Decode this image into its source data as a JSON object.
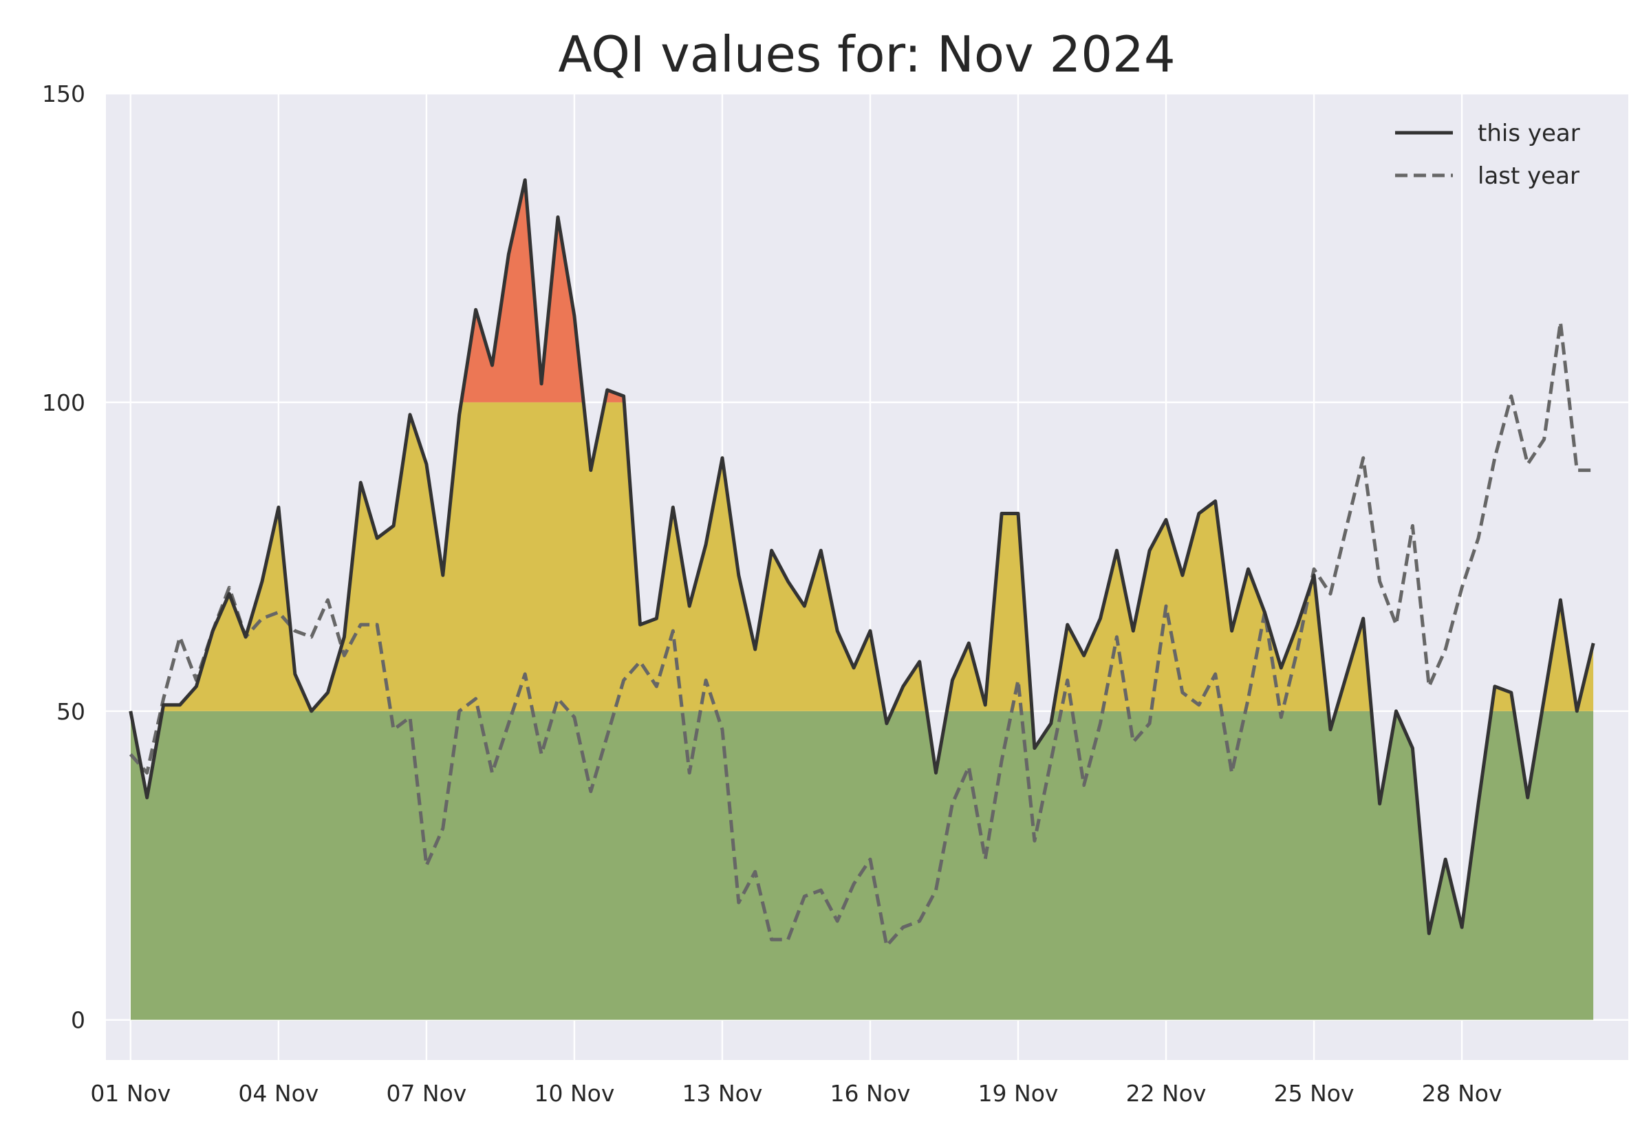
{
  "chart_data": {
    "type": "area",
    "title": "AQI values for: Nov 2024",
    "xlabel": "",
    "ylabel": "",
    "ylim": [
      -6.5,
      150
    ],
    "yticks": [
      0,
      50,
      100,
      150
    ],
    "xlim": [
      "2024-10-31 12:00",
      "2024-12-01 09:00"
    ],
    "xticks": [
      "2024-11-01",
      "2024-11-04",
      "2024-11-07",
      "2024-11-10",
      "2024-11-13",
      "2024-11-16",
      "2024-11-19",
      "2024-11-22",
      "2024-11-25",
      "2024-11-28"
    ],
    "xtick_labels": [
      "01 Nov",
      "04 Nov",
      "07 Nov",
      "10 Nov",
      "13 Nov",
      "16 Nov",
      "19 Nov",
      "22 Nov",
      "25 Nov",
      "28 Nov"
    ],
    "sampling": "every 8 hours from 2024-11-01 00:00",
    "grid": true,
    "legend_position": "top-right",
    "bands": [
      {
        "from": 0,
        "to": 50,
        "color": "#8fad6e"
      },
      {
        "from": 50,
        "to": 100,
        "color": "#d9c04e"
      },
      {
        "from": 100,
        "to": 150,
        "color": "#ec7755"
      }
    ],
    "series": [
      {
        "name": "this year",
        "style": "solid",
        "color": "#333333",
        "values": [
          50,
          36,
          51,
          51,
          54,
          63,
          69,
          62,
          71,
          83,
          56,
          50,
          53,
          62,
          87,
          78,
          80,
          98,
          90,
          72,
          98,
          115,
          106,
          124,
          136,
          103,
          130,
          114,
          89,
          102,
          101,
          64,
          65,
          83,
          67,
          77,
          91,
          72,
          60,
          76,
          71,
          67,
          76,
          63,
          57,
          63,
          48,
          54,
          58,
          40,
          55,
          61,
          51,
          82,
          82,
          44,
          48,
          64,
          59,
          65,
          76,
          63,
          76,
          81,
          72,
          82,
          84,
          63,
          73,
          66,
          57,
          64,
          72,
          47,
          56,
          65,
          35,
          50,
          44,
          14,
          26,
          15,
          35,
          54,
          53,
          36,
          52,
          68,
          50,
          61
        ]
      },
      {
        "name": "last year",
        "style": "dashed",
        "color": "#666666",
        "values": [
          43,
          40,
          52,
          62,
          55,
          63,
          70,
          62,
          65,
          66,
          63,
          62,
          68,
          59,
          64,
          64,
          47,
          49,
          25,
          31,
          50,
          52,
          40,
          48,
          56,
          43,
          52,
          49,
          37,
          46,
          55,
          58,
          54,
          63,
          40,
          55,
          47,
          19,
          24,
          13,
          13,
          20,
          21,
          16,
          22,
          26,
          12,
          15,
          16,
          21,
          35,
          41,
          26,
          42,
          55,
          29,
          42,
          55,
          38,
          48,
          62,
          45,
          48,
          67,
          53,
          51,
          56,
          40,
          52,
          66,
          49,
          60,
          73,
          69,
          80,
          91,
          71,
          64,
          80,
          54,
          60,
          70,
          78,
          91,
          101,
          90,
          94,
          113,
          89,
          89
        ]
      }
    ]
  }
}
